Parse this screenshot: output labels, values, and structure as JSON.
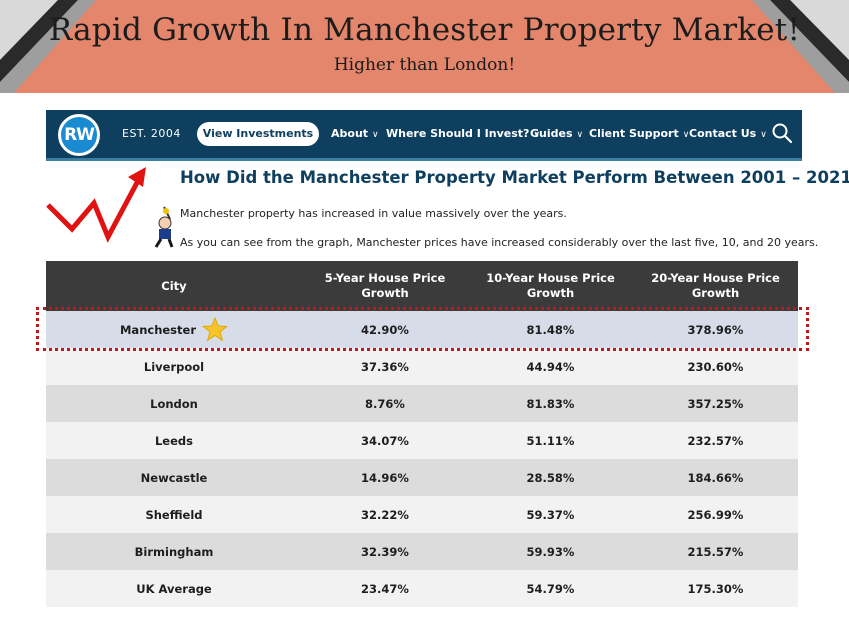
{
  "banner": {
    "title": "Rapid Growth In Manchester Property Market!",
    "subtitle": "Higher than London!",
    "background_color": "#e4866b"
  },
  "navbar": {
    "logo_text": "RW",
    "established": "EST. 2004",
    "view_button": "View Investments",
    "menu": [
      {
        "label": "About"
      },
      {
        "label": "Where Should I Invest?"
      },
      {
        "label": "Guides"
      },
      {
        "label": "Client Support"
      },
      {
        "label": "Contact Us"
      }
    ],
    "search_icon": "search-icon",
    "background_color": "#0e3f5e"
  },
  "content": {
    "heading": "How Did the Manchester Property Market Perform Between 2001 – 2021?",
    "intro_lines": [
      "Manchester property has increased in value massively over the years.",
      "As you can see from the graph, Manchester prices have increased considerably over the last five, 10, and 20 years."
    ]
  },
  "table": {
    "headers": [
      "City",
      "5-Year House Price Growth",
      "10-Year House Price Growth",
      "20-Year House Price Growth"
    ],
    "rows": [
      {
        "city": "Manchester",
        "y5": "42.90%",
        "y10": "81.48%",
        "y20": "378.96%",
        "highlighted": true
      },
      {
        "city": "Liverpool",
        "y5": "37.36%",
        "y10": "44.94%",
        "y20": "230.60%"
      },
      {
        "city": "London",
        "y5": "8.76%",
        "y10": "81.83%",
        "y20": "357.25%"
      },
      {
        "city": "Leeds",
        "y5": "34.07%",
        "y10": "51.11%",
        "y20": "232.57%"
      },
      {
        "city": "Newcastle",
        "y5": "14.96%",
        "y10": "28.58%",
        "y20": "184.66%"
      },
      {
        "city": "Sheffield",
        "y5": "32.22%",
        "y10": "59.37%",
        "y20": "256.99%"
      },
      {
        "city": "Birmingham",
        "y5": "32.39%",
        "y10": "59.93%",
        "y20": "215.57%"
      },
      {
        "city": "UK Average",
        "y5": "23.47%",
        "y10": "54.79%",
        "y20": "175.30%"
      }
    ],
    "highlight_color": "#c0171b",
    "star_icon": "star-icon"
  }
}
